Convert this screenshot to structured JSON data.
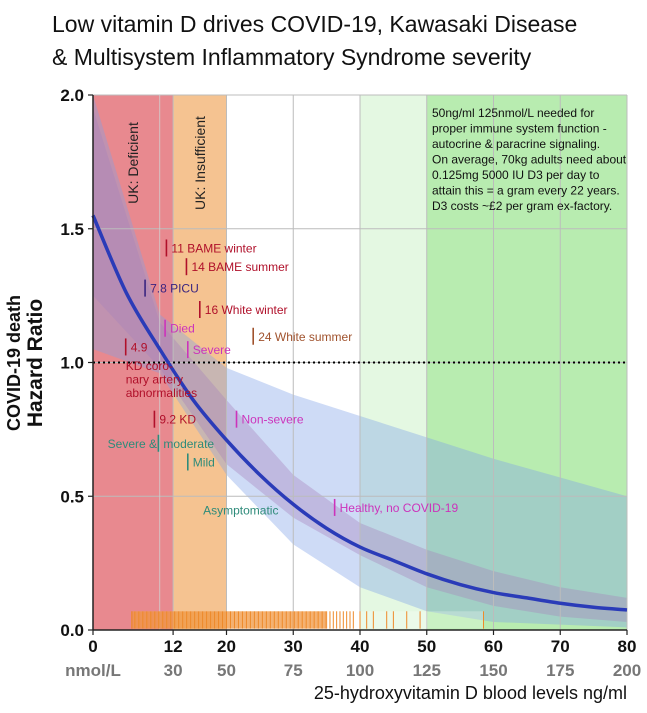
{
  "title_lines": [
    "Low vitamin D drives COVID-19, Kawasaki Disease",
    "& Multisystem Inflammatory Syndrome severity"
  ],
  "chart_data": {
    "type": "line",
    "xlabel": "25-hydroxyvitamin D blood levels ng/ml",
    "ylabel_line1": "COVID-19 death",
    "ylabel_line2": "Hazard Ratio",
    "xlim": [
      0,
      80
    ],
    "ylim": [
      0,
      2.0
    ],
    "x_ticks": [
      0,
      12,
      20,
      30,
      40,
      50,
      60,
      70,
      80
    ],
    "x_tick_labels": [
      "0",
      "12",
      "20",
      "30",
      "40",
      "50",
      "60",
      "70",
      "80"
    ],
    "nmol_label": "nmol/L",
    "nmol_ticks": [
      {
        "x": 12,
        "label": "30"
      },
      {
        "x": 20,
        "label": "50"
      },
      {
        "x": 30,
        "label": "75"
      },
      {
        "x": 40,
        "label": "100"
      },
      {
        "x": 50,
        "label": "125"
      },
      {
        "x": 60,
        "label": "150"
      },
      {
        "x": 70,
        "label": "175"
      },
      {
        "x": 80,
        "label": "200"
      }
    ],
    "y_ticks": [
      0,
      0.5,
      1.0,
      1.5,
      2.0
    ],
    "y_tick_labels": [
      "0.0",
      "0.5",
      "1.0",
      "1.5",
      "2.0"
    ],
    "grid": true,
    "reference_line_y": 1.0,
    "zones": [
      {
        "x0": 0,
        "x1": 12,
        "color": "#e8898f",
        "label": "UK: Deficient"
      },
      {
        "x0": 12,
        "x1": 20,
        "color": "#f5c391",
        "label": "UK: Insufficient"
      },
      {
        "x0": 40,
        "x1": 50,
        "color": "#e4f8e2",
        "label": ""
      },
      {
        "x0": 50,
        "x1": 80,
        "color": "#b8ecb0",
        "label": ""
      }
    ],
    "series": [
      {
        "x": [
          0,
          5,
          10,
          15,
          20,
          25,
          30,
          35,
          40,
          45,
          50,
          55,
          60,
          65,
          70,
          75,
          80
        ],
        "values": [
          1.55,
          1.26,
          1.05,
          0.86,
          0.71,
          0.58,
          0.47,
          0.38,
          0.31,
          0.26,
          0.21,
          0.17,
          0.14,
          0.12,
          0.1,
          0.085,
          0.075
        ],
        "color": "#2a3bb8"
      }
    ],
    "bands": [
      {
        "color": "#c070a0",
        "x": [
          0,
          10,
          20,
          30,
          40,
          50,
          60,
          70,
          80
        ],
        "lower": [
          1.25,
          0.98,
          0.62,
          0.42,
          0.28,
          0.16,
          0.09,
          0.05,
          0.03
        ],
        "upper": [
          1.95,
          1.15,
          0.86,
          0.58,
          0.4,
          0.3,
          0.22,
          0.16,
          0.12
        ]
      },
      {
        "color": "#7da0e8",
        "x": [
          0,
          10,
          20,
          30,
          40,
          50,
          60,
          70,
          80
        ],
        "lower": [
          1.05,
          0.96,
          0.58,
          0.32,
          0.16,
          0.07,
          0.03,
          0.02,
          0.01
        ],
        "upper": [
          2.0,
          1.18,
          0.98,
          0.88,
          0.8,
          0.72,
          0.64,
          0.57,
          0.5
        ]
      }
    ],
    "rug": {
      "color": "#ee8a2a",
      "x": [
        5.8,
        6.0,
        6.2,
        6.4,
        6.6,
        6.8,
        7.0,
        7.2,
        7.4,
        7.6,
        7.8,
        8.0,
        8.2,
        8.4,
        8.6,
        8.8,
        9.0,
        9.2,
        9.4,
        9.6,
        9.8,
        10.0,
        10.2,
        10.4,
        10.6,
        10.8,
        11.0,
        11.2,
        11.4,
        11.6,
        11.8,
        12.0,
        12.2,
        12.4,
        12.6,
        12.8,
        13.0,
        13.2,
        13.4,
        13.6,
        13.8,
        14.0,
        14.2,
        14.4,
        14.6,
        14.8,
        15.0,
        15.2,
        15.4,
        15.6,
        15.8,
        16.0,
        16.2,
        16.4,
        16.6,
        16.8,
        17.0,
        17.2,
        17.4,
        17.6,
        17.8,
        18.0,
        18.2,
        18.4,
        18.6,
        18.8,
        19.0,
        19.2,
        19.4,
        19.6,
        19.8,
        20.0,
        20.2,
        20.4,
        20.6,
        20.8,
        21.0,
        21.2,
        21.4,
        21.6,
        21.8,
        22.0,
        22.2,
        22.4,
        22.6,
        22.8,
        23.0,
        23.2,
        23.4,
        23.6,
        23.8,
        24.0,
        24.2,
        24.4,
        24.6,
        24.8,
        25.0,
        25.2,
        25.4,
        25.6,
        25.8,
        26.0,
        26.2,
        26.4,
        26.6,
        26.8,
        27.0,
        27.2,
        27.4,
        27.6,
        27.8,
        28.0,
        28.2,
        28.4,
        28.6,
        28.8,
        29.0,
        29.2,
        29.4,
        29.6,
        29.8,
        30.0,
        30.2,
        30.4,
        30.6,
        30.8,
        31.0,
        31.2,
        31.4,
        31.6,
        31.8,
        32.0,
        32.2,
        32.4,
        32.6,
        32.8,
        33.0,
        33.2,
        33.4,
        33.6,
        33.8,
        34.0,
        34.2,
        34.4,
        34.6,
        34.8,
        35.0,
        35.5,
        36.0,
        36.5,
        37.0,
        37.5,
        38.0,
        38.5,
        39.0,
        40.0,
        41.0,
        42.0,
        44.0,
        45.0,
        47.0,
        49.0,
        58.5
      ]
    },
    "annotations": [
      {
        "text": "11 BAME winter",
        "x": 11,
        "y": 1.43,
        "color": "#b0102a"
      },
      {
        "text": "14 BAME summer",
        "x": 14,
        "y": 1.36,
        "color": "#b0102a"
      },
      {
        "text": "7.8 PICU",
        "x": 7.8,
        "y": 1.28,
        "color": "#3a2580"
      },
      {
        "text": "16 White winter",
        "x": 16,
        "y": 1.2,
        "color": "#b0102a"
      },
      {
        "text": "24 White summer",
        "x": 24,
        "y": 1.1,
        "color": "#a0522d"
      },
      {
        "text": "Died",
        "x": 10.8,
        "y": 1.13,
        "color": "#cc33bb"
      },
      {
        "text": "Severe",
        "x": 14.2,
        "y": 1.05,
        "color": "#cc33bb"
      },
      {
        "text": "4.9",
        "x": 4.9,
        "y": 1.06,
        "color": "#b0102a"
      },
      {
        "text": "9.2 KD",
        "x": 9.2,
        "y": 0.79,
        "color": "#b0102a"
      },
      {
        "text": "Non-severe",
        "x": 21.5,
        "y": 0.79,
        "color": "#cc33bb"
      },
      {
        "text": "moderate",
        "x": 9.8,
        "y": 0.7,
        "color": "#2e8b7a"
      },
      {
        "text": "Mild",
        "x": 14.2,
        "y": 0.63,
        "color": "#2e8b7a"
      },
      {
        "text": "Healthy, no COVID-19",
        "x": 36.2,
        "y": 0.46,
        "color": "#cc33bb"
      }
    ],
    "free_labels": [
      {
        "text": "KD coro-",
        "x": 4.9,
        "y": 0.99,
        "color": "#b0102a"
      },
      {
        "text": "nary artery",
        "x": 4.9,
        "y": 0.94,
        "color": "#b0102a"
      },
      {
        "text": "abnormalities",
        "x": 4.9,
        "y": 0.89,
        "color": "#b0102a"
      },
      {
        "text": "Severe &",
        "x": 2.2,
        "y": 0.7,
        "color": "#2e8b7a"
      },
      {
        "text": "Asymptomatic",
        "x": 16.5,
        "y": 0.45,
        "color": "#2e8b7a"
      }
    ],
    "note_lines": [
      "50ng/ml 125nmol/L needed for",
      "proper immune system function -",
      "autocrine & paracrine signaling.",
      "On average, 70kg adults need about",
      "0.125mg 5000 IU D3 per day to",
      "attain this = a gram every 22 years.",
      "D3 costs ~£2 per gram ex-factory."
    ]
  }
}
